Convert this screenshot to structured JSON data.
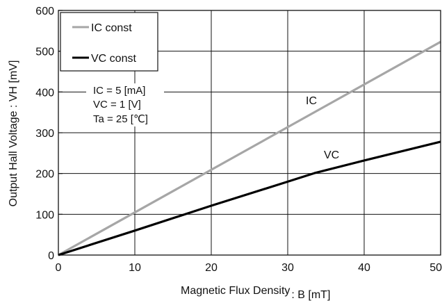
{
  "chart_data": {
    "type": "line",
    "xlabel_main": "Magnetic Flux Density",
    "xlabel_unit": ": B [mT]",
    "ylabel": "Output Hall Voltage : VH  [mV]",
    "xlim": [
      0,
      50
    ],
    "ylim": [
      0,
      600
    ],
    "x_ticks": [
      "0",
      "10",
      "20",
      "30",
      "40",
      "50"
    ],
    "y_ticks": [
      "0",
      "100",
      "200",
      "300",
      "400",
      "500",
      "600"
    ],
    "grid": true,
    "legend_position": "top-left",
    "series": [
      {
        "name": "Ic const",
        "legend_label": "IC const",
        "inline_label": "IC",
        "color": "#a6a6a6",
        "x": [
          0,
          50
        ],
        "y": [
          0,
          523
        ]
      },
      {
        "name": "Vc const",
        "legend_label": "VC const",
        "inline_label": "VC",
        "color": "#000000",
        "x": [
          0,
          10,
          20,
          30,
          33.5,
          40,
          50
        ],
        "y": [
          0,
          60,
          121,
          180,
          201,
          232,
          278
        ]
      }
    ],
    "conditions": [
      "IC =  5  [mA]",
      "VC =  1  [V]",
      "Ta = 25 [℃]"
    ]
  }
}
